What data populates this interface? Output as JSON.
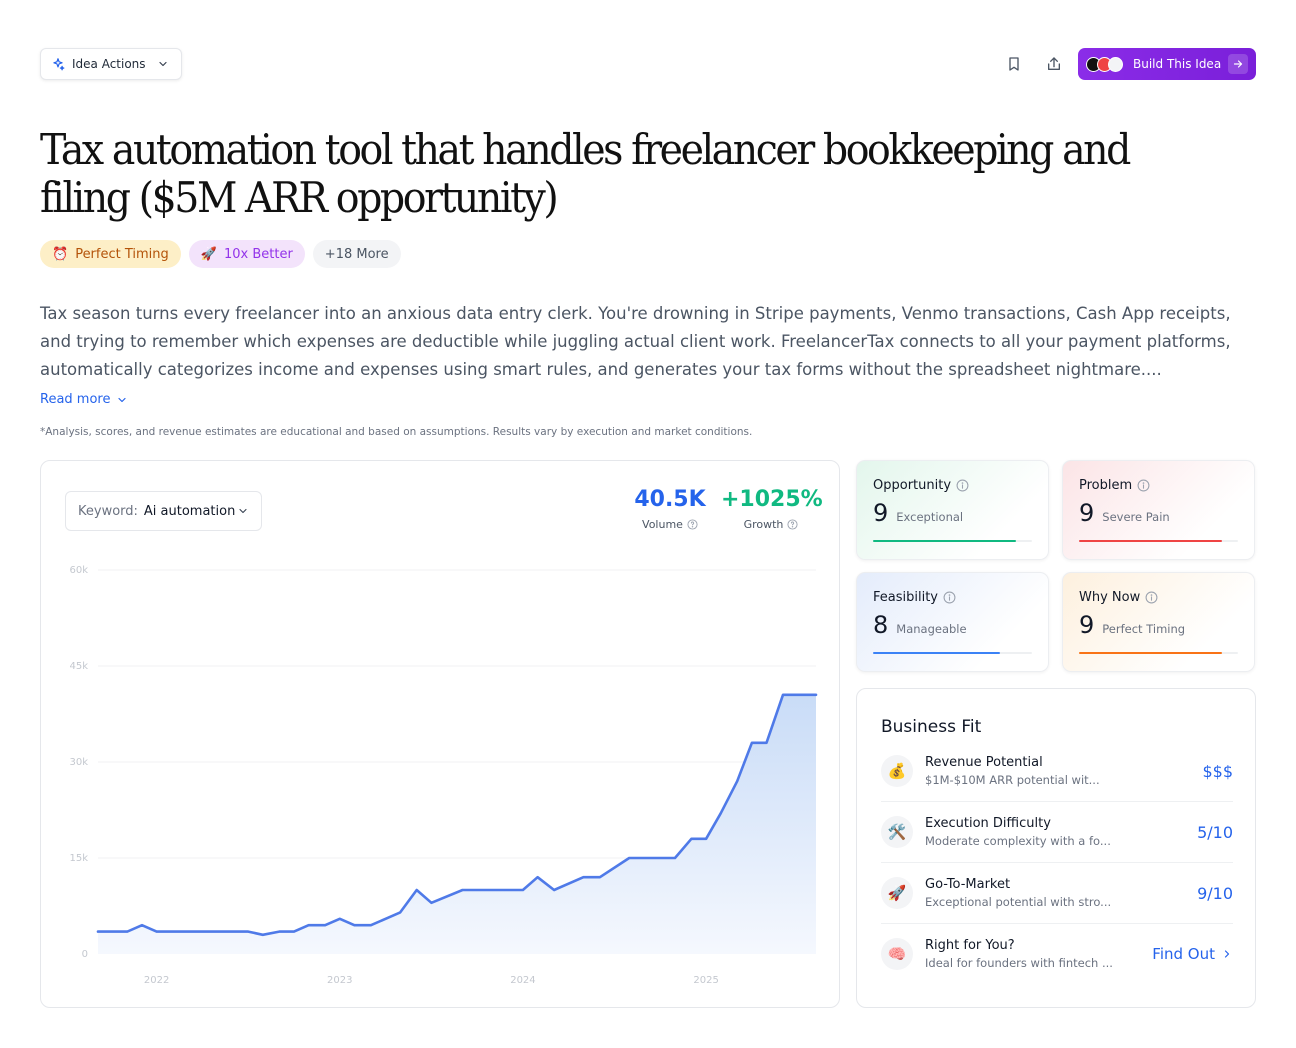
{
  "toolbar": {
    "actions_label": "Idea Actions",
    "build_label": "Build This Idea"
  },
  "idea": {
    "title": "Tax automation tool that handles freelancer bookkeeping and filing ($5M ARR opportunity)",
    "tags": [
      {
        "icon": "⏰",
        "label": "Perfect Timing"
      },
      {
        "icon": "🚀",
        "label": "10x Better"
      },
      {
        "label": "+18 More"
      }
    ],
    "description": "Tax season turns every freelancer into an anxious data entry clerk. You're drowning in Stripe payments, Venmo transactions, Cash App receipts, and trying to remember which expenses are deductible while juggling actual client work. FreelancerTax connects to all your payment platforms, automatically categorizes income and expenses using smart rules, and generates your tax forms without the spreadsheet nightmare....",
    "read_more": "Read more",
    "disclaimer": "*Analysis, scores, and revenue estimates are educational and based on assumptions. Results vary by execution and market conditions."
  },
  "trend": {
    "keyword_label": "Keyword:",
    "keyword_value": "Ai automation",
    "volume_value": "40.5K",
    "volume_label": "Volume",
    "growth_value": "+1025%",
    "growth_label": "Growth"
  },
  "chart_data": {
    "type": "area",
    "x_axis_ticks": [
      "2022",
      "2023",
      "2024",
      "2025"
    ],
    "y_axis_ticks": [
      "0",
      "15k",
      "30k",
      "45k",
      "60k"
    ],
    "ylim": [
      0,
      60000
    ],
    "x_range": [
      2021.68,
      2025.6
    ],
    "x": [
      2021.68,
      2021.84,
      2021.92,
      2022.0,
      2022.16,
      2022.33,
      2022.42,
      2022.5,
      2022.58,
      2022.67,
      2022.75,
      2022.83,
      2022.92,
      2023.0,
      2023.08,
      2023.17,
      2023.25,
      2023.33,
      2023.42,
      2023.5,
      2023.67,
      2023.83,
      2023.92,
      2024.0,
      2024.08,
      2024.17,
      2024.33,
      2024.42,
      2024.58,
      2024.75,
      2024.83,
      2024.92,
      2025.0,
      2025.08,
      2025.17,
      2025.25,
      2025.33,
      2025.42,
      2025.6
    ],
    "series": [
      {
        "values": [
          3500,
          3500,
          4500,
          3500,
          3500,
          3500,
          3500,
          3500,
          3000,
          3500,
          3500,
          4500,
          4500,
          5500,
          4500,
          4500,
          5500,
          6500,
          10000,
          8000,
          10000,
          10000,
          10000,
          10000,
          12000,
          10000,
          12000,
          12000,
          15000,
          15000,
          15000,
          18000,
          18000,
          22000,
          27000,
          33000,
          33000,
          40500,
          40500
        ],
        "color": "#4f7ae8"
      }
    ]
  },
  "scores": {
    "opportunity": {
      "title": "Opportunity",
      "value": "9",
      "label": "Exceptional",
      "fraction": 0.9,
      "color": "#10b981"
    },
    "problem": {
      "title": "Problem",
      "value": "9",
      "label": "Severe Pain",
      "fraction": 0.9,
      "color": "#ef4444"
    },
    "feasibility": {
      "title": "Feasibility",
      "value": "8",
      "label": "Manageable",
      "fraction": 0.8,
      "color": "#3b82f6"
    },
    "why_now": {
      "title": "Why Now",
      "value": "9",
      "label": "Perfect Timing",
      "fraction": 0.9,
      "color": "#f97316"
    }
  },
  "business_fit": {
    "title": "Business Fit",
    "rows": [
      {
        "icon": "💰",
        "name": "Revenue Potential",
        "desc": "$1M-$10M ARR potential wit...",
        "value": "$$$"
      },
      {
        "icon": "🛠️",
        "name": "Execution Difficulty",
        "desc": "Moderate complexity with a fo...",
        "value": "5/10"
      },
      {
        "icon": "🚀",
        "name": "Go-To-Market",
        "desc": "Exceptional potential with stro...",
        "value": "9/10"
      },
      {
        "icon": "🧠",
        "name": "Right for You?",
        "desc": "Ideal for founders with fintech ...",
        "value": "Find Out"
      }
    ]
  }
}
